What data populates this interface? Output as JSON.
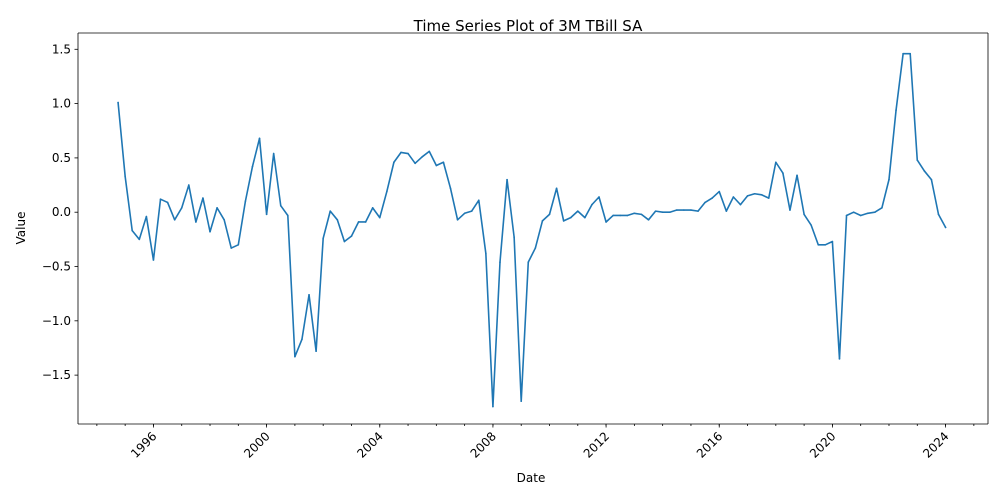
{
  "chart_data": {
    "type": "line",
    "title": "Time Series Plot of 3M TBill SA",
    "xlabel": "Date",
    "ylabel": "Value",
    "ylim": [
      -1.95,
      1.65
    ],
    "xlim": [
      "1993-05",
      "2025-07"
    ],
    "grid": false,
    "x_tick_labels": [
      "1996",
      "2000",
      "2004",
      "2008",
      "2012",
      "2016",
      "2020",
      "2024"
    ],
    "y_tick_labels": [
      "-1.5",
      "-1.0",
      "-0.5",
      "0.0",
      "0.5",
      "1.0",
      "1.5"
    ],
    "series": [
      {
        "color": "#1f77b4",
        "points": [
          [
            "1994-10",
            1.01
          ],
          [
            "1995-01",
            0.33
          ],
          [
            "1995-04",
            -0.17
          ],
          [
            "1995-07",
            -0.25
          ],
          [
            "1995-10",
            -0.04
          ],
          [
            "1996-01",
            -0.44
          ],
          [
            "1996-04",
            0.12
          ],
          [
            "1996-07",
            0.09
          ],
          [
            "1996-10",
            -0.07
          ],
          [
            "1997-01",
            0.04
          ],
          [
            "1997-04",
            0.25
          ],
          [
            "1997-07",
            -0.09
          ],
          [
            "1997-10",
            0.13
          ],
          [
            "1998-01",
            -0.18
          ],
          [
            "1998-04",
            0.04
          ],
          [
            "1998-07",
            -0.07
          ],
          [
            "1998-10",
            -0.33
          ],
          [
            "1999-01",
            -0.3
          ],
          [
            "1999-04",
            0.1
          ],
          [
            "1999-07",
            0.42
          ],
          [
            "1999-10",
            0.68
          ],
          [
            "2000-01",
            -0.02
          ],
          [
            "2000-04",
            0.54
          ],
          [
            "2000-07",
            0.06
          ],
          [
            "2000-10",
            -0.03
          ],
          [
            "2001-01",
            -1.33
          ],
          [
            "2001-04",
            -1.17
          ],
          [
            "2001-07",
            -0.76
          ],
          [
            "2001-10",
            -1.28
          ],
          [
            "2002-01",
            -0.24
          ],
          [
            "2002-04",
            0.01
          ],
          [
            "2002-07",
            -0.07
          ],
          [
            "2002-10",
            -0.27
          ],
          [
            "2003-01",
            -0.22
          ],
          [
            "2003-04",
            -0.09
          ],
          [
            "2003-07",
            -0.09
          ],
          [
            "2003-10",
            0.04
          ],
          [
            "2004-01",
            -0.05
          ],
          [
            "2004-04",
            0.19
          ],
          [
            "2004-07",
            0.46
          ],
          [
            "2004-10",
            0.55
          ],
          [
            "2005-01",
            0.54
          ],
          [
            "2005-04",
            0.45
          ],
          [
            "2005-07",
            0.51
          ],
          [
            "2005-10",
            0.56
          ],
          [
            "2006-01",
            0.43
          ],
          [
            "2006-04",
            0.46
          ],
          [
            "2006-07",
            0.22
          ],
          [
            "2006-10",
            -0.07
          ],
          [
            "2007-01",
            -0.01
          ],
          [
            "2007-04",
            0.01
          ],
          [
            "2007-07",
            0.11
          ],
          [
            "2007-10",
            -0.38
          ],
          [
            "2008-01",
            -1.79
          ],
          [
            "2008-04",
            -0.46
          ],
          [
            "2008-07",
            0.3
          ],
          [
            "2008-10",
            -0.23
          ],
          [
            "2009-01",
            -1.74
          ],
          [
            "2009-04",
            -0.46
          ],
          [
            "2009-07",
            -0.33
          ],
          [
            "2009-10",
            -0.08
          ],
          [
            "2010-01",
            -0.02
          ],
          [
            "2010-04",
            0.22
          ],
          [
            "2010-07",
            -0.08
          ],
          [
            "2010-10",
            -0.05
          ],
          [
            "2011-01",
            0.01
          ],
          [
            "2011-04",
            -0.05
          ],
          [
            "2011-07",
            0.07
          ],
          [
            "2011-10",
            0.14
          ],
          [
            "2012-01",
            -0.09
          ],
          [
            "2012-04",
            -0.03
          ],
          [
            "2012-07",
            -0.03
          ],
          [
            "2012-10",
            -0.03
          ],
          [
            "2013-01",
            -0.01
          ],
          [
            "2013-04",
            -0.02
          ],
          [
            "2013-07",
            -0.07
          ],
          [
            "2013-10",
            0.01
          ],
          [
            "2014-01",
            0.0
          ],
          [
            "2014-04",
            0.0
          ],
          [
            "2014-07",
            0.02
          ],
          [
            "2014-10",
            0.02
          ],
          [
            "2015-01",
            0.02
          ],
          [
            "2015-04",
            0.01
          ],
          [
            "2015-07",
            0.09
          ],
          [
            "2015-10",
            0.13
          ],
          [
            "2016-01",
            0.19
          ],
          [
            "2016-04",
            0.01
          ],
          [
            "2016-07",
            0.14
          ],
          [
            "2016-10",
            0.07
          ],
          [
            "2017-01",
            0.15
          ],
          [
            "2017-04",
            0.17
          ],
          [
            "2017-07",
            0.16
          ],
          [
            "2017-10",
            0.13
          ],
          [
            "2018-01",
            0.46
          ],
          [
            "2018-04",
            0.36
          ],
          [
            "2018-07",
            0.02
          ],
          [
            "2018-10",
            0.34
          ],
          [
            "2019-01",
            -0.02
          ],
          [
            "2019-04",
            -0.12
          ],
          [
            "2019-07",
            -0.3
          ],
          [
            "2019-10",
            -0.3
          ],
          [
            "2020-01",
            -0.27
          ],
          [
            "2020-04",
            -1.35
          ],
          [
            "2020-07",
            -0.03
          ],
          [
            "2020-10",
            0.0
          ],
          [
            "2021-01",
            -0.03
          ],
          [
            "2021-04",
            -0.01
          ],
          [
            "2021-07",
            0.0
          ],
          [
            "2021-10",
            0.04
          ],
          [
            "2022-01",
            0.3
          ],
          [
            "2022-04",
            0.94
          ],
          [
            "2022-07",
            1.46
          ],
          [
            "2022-10",
            1.46
          ],
          [
            "2023-01",
            0.48
          ],
          [
            "2023-04",
            0.38
          ],
          [
            "2023-07",
            0.3
          ],
          [
            "2023-10",
            -0.02
          ],
          [
            "2024-01",
            -0.14
          ]
        ]
      }
    ]
  }
}
